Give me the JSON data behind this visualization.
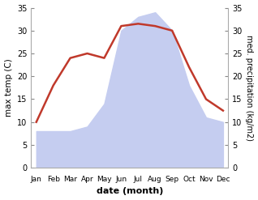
{
  "months": [
    "Jan",
    "Feb",
    "Mar",
    "Apr",
    "May",
    "Jun",
    "Jul",
    "Aug",
    "Sep",
    "Oct",
    "Nov",
    "Dec"
  ],
  "temperature": [
    10,
    18,
    24,
    25,
    24,
    31,
    31.5,
    31,
    30,
    22,
    15,
    12.5
  ],
  "precipitation": [
    8,
    8,
    8,
    9,
    14,
    30,
    33,
    34,
    30,
    18,
    11,
    10
  ],
  "temp_color": "#c0392b",
  "precip_fill_color": "#c5cdf0",
  "xlabel": "date (month)",
  "ylabel_left": "max temp (C)",
  "ylabel_right": "med. precipitation (kg/m2)",
  "ylim_left": [
    0,
    35
  ],
  "ylim_right": [
    0,
    35
  ],
  "yticks": [
    0,
    5,
    10,
    15,
    20,
    25,
    30,
    35
  ],
  "background_color": "#ffffff"
}
